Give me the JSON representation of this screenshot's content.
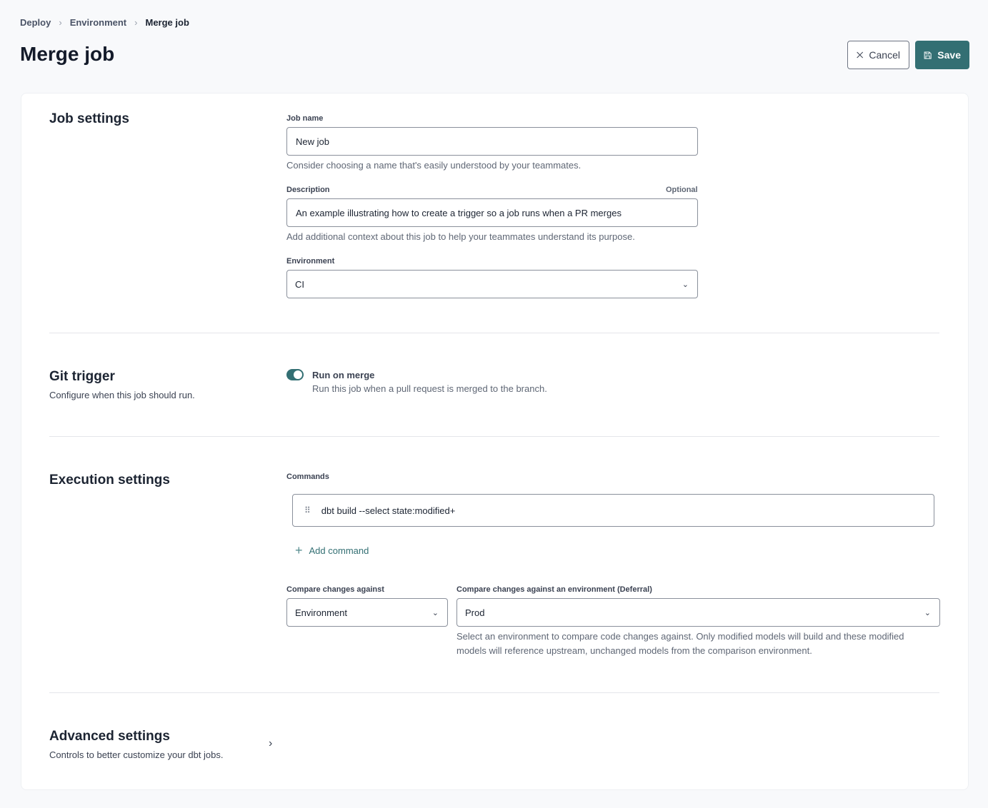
{
  "breadcrumb": [
    "Deploy",
    "Environment",
    "Merge job"
  ],
  "page_title": "Merge job",
  "actions": {
    "cancel": "Cancel",
    "save": "Save"
  },
  "colors": {
    "accent": "#336f73"
  },
  "job_settings": {
    "title": "Job settings",
    "job_name": {
      "label": "Job name",
      "value": "New job",
      "help": "Consider choosing a name that's easily understood by your teammates."
    },
    "description": {
      "label": "Description",
      "optional": "Optional",
      "value": "An example illustrating how to create a trigger so a job runs when a PR merges",
      "help": "Add additional context about this job to help your teammates understand its purpose."
    },
    "environment": {
      "label": "Environment",
      "value": "CI"
    }
  },
  "git_trigger": {
    "title": "Git trigger",
    "subtitle": "Configure when this job should run.",
    "toggle": {
      "label": "Run on merge",
      "help": "Run this job when a pull request is merged to the branch.",
      "on": true
    }
  },
  "execution": {
    "title": "Execution settings",
    "commands_label": "Commands",
    "commands": [
      "dbt build --select state:modified+"
    ],
    "add_command": "Add command",
    "compare": {
      "label": "Compare changes against",
      "value": "Environment"
    },
    "deferral": {
      "label": "Compare changes against an environment (Deferral)",
      "value": "Prod",
      "help": "Select an environment to compare code changes against. Only modified models will build and these modified models will reference upstream, unchanged models from the comparison environment."
    }
  },
  "advanced": {
    "title": "Advanced settings",
    "subtitle": "Controls to better customize your dbt jobs."
  }
}
